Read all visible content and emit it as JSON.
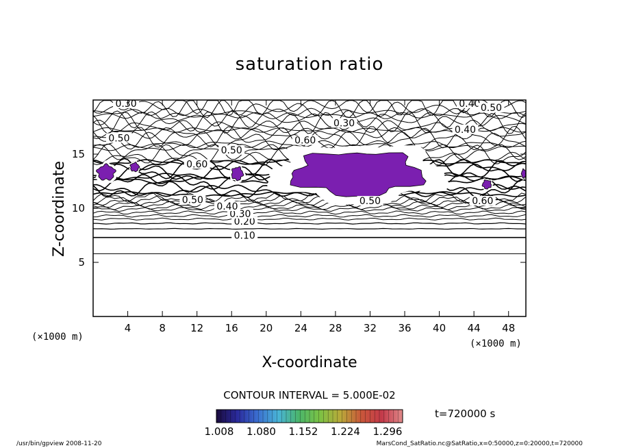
{
  "chart_data": {
    "type": "contour",
    "title": "saturation ratio",
    "xlabel": "X-coordinate",
    "ylabel": "Z-coordinate",
    "x_unit": "(×1000 m)",
    "y_unit": "(×1000 m)",
    "xlim": [
      0,
      50
    ],
    "ylim": [
      0,
      20
    ],
    "x_ticks": [
      4,
      8,
      12,
      16,
      20,
      24,
      28,
      32,
      36,
      40,
      44,
      48
    ],
    "y_ticks": [
      5,
      10,
      15
    ],
    "contour_interval_text": "CONTOUR INTERVAL = 5.000E-02",
    "contour_labels": [
      {
        "text": "0.10",
        "x": 17.5,
        "z": 7.3
      },
      {
        "text": "0.20",
        "x": 17.5,
        "z": 8.6
      },
      {
        "text": "0.30",
        "x": 17.0,
        "z": 9.3
      },
      {
        "text": "0.40",
        "x": 15.5,
        "z": 10.0
      },
      {
        "text": "0.50",
        "x": 11.5,
        "z": 10.6
      },
      {
        "text": "0.50",
        "x": 32.0,
        "z": 10.5
      },
      {
        "text": "0.60",
        "x": 12.0,
        "z": 13.9
      },
      {
        "text": "0.50",
        "x": 16.0,
        "z": 15.2
      },
      {
        "text": "0.50",
        "x": 3.0,
        "z": 16.3
      },
      {
        "text": "0.30",
        "x": 3.8,
        "z": 19.5
      },
      {
        "text": "0.30",
        "x": 29.0,
        "z": 17.7
      },
      {
        "text": "0.60",
        "x": 24.5,
        "z": 16.1
      },
      {
        "text": "0.40",
        "x": 43.5,
        "z": 19.5
      },
      {
        "text": "0.50",
        "x": 46.0,
        "z": 19.1
      },
      {
        "text": "0.40",
        "x": 43.0,
        "z": 17.1
      },
      {
        "text": "0.60",
        "x": 45.0,
        "z": 10.5
      }
    ],
    "supersaturated_regions": [
      {
        "x": [
          0.5,
          2.5
        ],
        "z": [
          12.6,
          14.0
        ]
      },
      {
        "x": [
          4.3,
          5.3
        ],
        "z": [
          13.4,
          14.2
        ]
      },
      {
        "x": [
          16.0,
          17.3
        ],
        "z": [
          12.6,
          13.8
        ]
      },
      {
        "x": [
          23.0,
          38.0
        ],
        "z": [
          11.2,
          15.2
        ]
      },
      {
        "x": [
          45.0,
          46.0
        ],
        "z": [
          11.8,
          12.6
        ]
      },
      {
        "x": [
          49.5,
          50.0
        ],
        "z": [
          12.8,
          13.6
        ]
      }
    ],
    "colorbar": {
      "ticks": [
        "1.008",
        "1.080",
        "1.152",
        "1.224",
        "1.296"
      ],
      "colors": [
        "#1a0b3d",
        "#2a2a9c",
        "#3b6fd1",
        "#49b4d6",
        "#4bb56a",
        "#7cc244",
        "#b9a93a",
        "#c9573a",
        "#c43a4a",
        "#e08a8a"
      ]
    },
    "time_text": "t=720000 s",
    "footer_left": "/usr/bin/gpview   2008-11-20",
    "footer_right": "MarsCond_SatRatio.nc@SatRatio,x=0:50000,z=0:20000,t=720000",
    "fill_color": "#7b1fb0"
  }
}
